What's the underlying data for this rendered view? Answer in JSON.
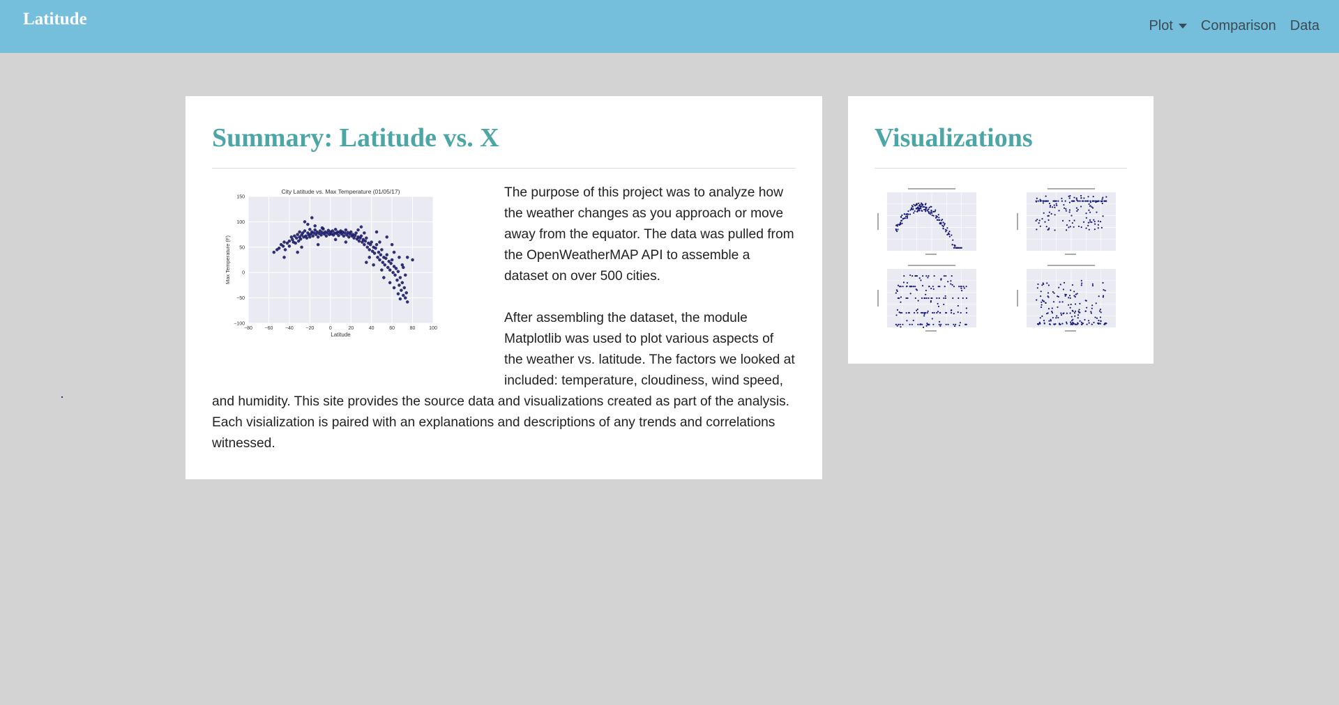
{
  "navbar": {
    "brand": "Latitude",
    "links": [
      {
        "label": "Plot",
        "dropdown": true
      },
      {
        "label": "Comparison"
      },
      {
        "label": "Data"
      }
    ]
  },
  "summary": {
    "title": "Summary: Latitude vs. X",
    "paragraphs": [
      "The purpose of this project was to analyze how the weather changes as you approach or move away from the equator. The data was pulled from the OpenWeatherMAP API to assemble a dataset on over 500 cities.",
      "After assembling the dataset, the module Matplotlib was used to plot various aspects of the weather vs. latitude. The factors we looked at included: temperature, cloudiness, wind speed, and humidity. This site provides the source data and visualizations created as part of the analysis. Each visialization is paired with an explanations and descriptions of any trends and correlations witnessed."
    ]
  },
  "visualizations": {
    "title": "Visualizations"
  },
  "colors": {
    "navbar": "#75bfdc",
    "heading": "#4ca6a6",
    "background": "#d3d3d3",
    "plot_bg": "#eaeaf2",
    "point": "#1a1a7a"
  },
  "chart_data": {
    "type": "scatter",
    "title": "City Latitude vs. Max Temperature (01/05/17)",
    "xlabel": "Latitude",
    "ylabel": "Max Temperature (F)",
    "xlim": [
      -80,
      100
    ],
    "ylim": [
      -100,
      150
    ],
    "xticks": [
      -80,
      -60,
      -40,
      -20,
      0,
      20,
      40,
      60,
      80,
      100
    ],
    "yticks": [
      -100,
      -50,
      0,
      50,
      100,
      150
    ],
    "xtick_labels": [
      "−80",
      "−60",
      "−40",
      "−20",
      "0",
      "20",
      "40",
      "60",
      "80",
      "100"
    ],
    "ytick_labels": [
      "−100",
      "−50",
      "0",
      "50",
      "100",
      "150"
    ],
    "grid": true,
    "points": [
      [
        -55,
        40
      ],
      [
        -52,
        45
      ],
      [
        -50,
        48
      ],
      [
        -48,
        55
      ],
      [
        -46,
        52
      ],
      [
        -45,
        60
      ],
      [
        -44,
        45
      ],
      [
        -42,
        58
      ],
      [
        -40,
        62
      ],
      [
        -40,
        52
      ],
      [
        -38,
        70
      ],
      [
        -37,
        65
      ],
      [
        -36,
        60
      ],
      [
        -35,
        72
      ],
      [
        -34,
        58
      ],
      [
        -33,
        68
      ],
      [
        -32,
        75
      ],
      [
        -31,
        62
      ],
      [
        -30,
        70
      ],
      [
        -30,
        80
      ],
      [
        -29,
        66
      ],
      [
        -28,
        74
      ],
      [
        -27,
        78
      ],
      [
        -26,
        70
      ],
      [
        -25,
        82
      ],
      [
        -24,
        72
      ],
      [
        -23,
        68
      ],
      [
        -22,
        78
      ],
      [
        -21,
        74
      ],
      [
        -20,
        85
      ],
      [
        -20,
        70
      ],
      [
        -19,
        76
      ],
      [
        -18,
        80
      ],
      [
        -17,
        72
      ],
      [
        -16,
        78
      ],
      [
        -15,
        84
      ],
      [
        -14,
        75
      ],
      [
        -13,
        80
      ],
      [
        -12,
        70
      ],
      [
        -11,
        77
      ],
      [
        -10,
        82
      ],
      [
        -9,
        74
      ],
      [
        -8,
        79
      ],
      [
        -7,
        86
      ],
      [
        -6,
        76
      ],
      [
        -5,
        80
      ],
      [
        -4,
        72
      ],
      [
        -3,
        78
      ],
      [
        -2,
        83
      ],
      [
        -1,
        75
      ],
      [
        0,
        80
      ],
      [
        1,
        76
      ],
      [
        2,
        82
      ],
      [
        3,
        74
      ],
      [
        4,
        78
      ],
      [
        5,
        85
      ],
      [
        6,
        77
      ],
      [
        7,
        80
      ],
      [
        8,
        73
      ],
      [
        9,
        79
      ],
      [
        10,
        82
      ],
      [
        11,
        76
      ],
      [
        12,
        80
      ],
      [
        13,
        72
      ],
      [
        14,
        78
      ],
      [
        15,
        84
      ],
      [
        16,
        74
      ],
      [
        17,
        79
      ],
      [
        18,
        70
      ],
      [
        19,
        76
      ],
      [
        20,
        80
      ],
      [
        21,
        72
      ],
      [
        22,
        75
      ],
      [
        23,
        68
      ],
      [
        24,
        73
      ],
      [
        25,
        78
      ],
      [
        26,
        66
      ],
      [
        27,
        70
      ],
      [
        28,
        62
      ],
      [
        29,
        68
      ],
      [
        30,
        72
      ],
      [
        31,
        60
      ],
      [
        32,
        65
      ],
      [
        33,
        55
      ],
      [
        34,
        62
      ],
      [
        35,
        68
      ],
      [
        36,
        50
      ],
      [
        37,
        58
      ],
      [
        38,
        45
      ],
      [
        39,
        55
      ],
      [
        40,
        60
      ],
      [
        41,
        42
      ],
      [
        42,
        50
      ],
      [
        43,
        38
      ],
      [
        44,
        48
      ],
      [
        45,
        55
      ],
      [
        46,
        30
      ],
      [
        47,
        40
      ],
      [
        48,
        25
      ],
      [
        49,
        35
      ],
      [
        50,
        45
      ],
      [
        51,
        20
      ],
      [
        52,
        30
      ],
      [
        53,
        15
      ],
      [
        54,
        28
      ],
      [
        55,
        35
      ],
      [
        56,
        10
      ],
      [
        57,
        22
      ],
      [
        58,
        5
      ],
      [
        59,
        18
      ],
      [
        60,
        25
      ],
      [
        61,
        0
      ],
      [
        62,
        12
      ],
      [
        63,
        -5
      ],
      [
        64,
        8
      ],
      [
        65,
        -15
      ],
      [
        66,
        2
      ],
      [
        67,
        -25
      ],
      [
        68,
        -10
      ],
      [
        69,
        -35
      ],
      [
        70,
        -20
      ],
      [
        71,
        -45
      ],
      [
        72,
        -30
      ],
      [
        73,
        -50
      ],
      [
        74,
        -40
      ],
      [
        75,
        -58
      ],
      [
        68,
        -52
      ],
      [
        62,
        -30
      ],
      [
        66,
        -42
      ],
      [
        58,
        -20
      ],
      [
        -25,
        100
      ],
      [
        -18,
        108
      ],
      [
        -22,
        95
      ],
      [
        -15,
        92
      ],
      [
        30,
        90
      ],
      [
        45,
        80
      ],
      [
        55,
        70
      ],
      [
        60,
        55
      ],
      [
        70,
        15
      ],
      [
        75,
        30
      ],
      [
        50,
        5
      ],
      [
        42,
        15
      ],
      [
        35,
        20
      ],
      [
        38,
        30
      ],
      [
        52,
        -10
      ],
      [
        48,
        60
      ],
      [
        33,
        78
      ],
      [
        27,
        84
      ],
      [
        -8,
        88
      ],
      [
        -32,
        40
      ],
      [
        -45,
        30
      ],
      [
        -28,
        50
      ],
      [
        -12,
        55
      ],
      [
        5,
        65
      ],
      [
        15,
        60
      ],
      [
        62,
        40
      ],
      [
        67,
        30
      ],
      [
        71,
        10
      ],
      [
        73,
        -5
      ],
      [
        80,
        25
      ]
    ]
  }
}
